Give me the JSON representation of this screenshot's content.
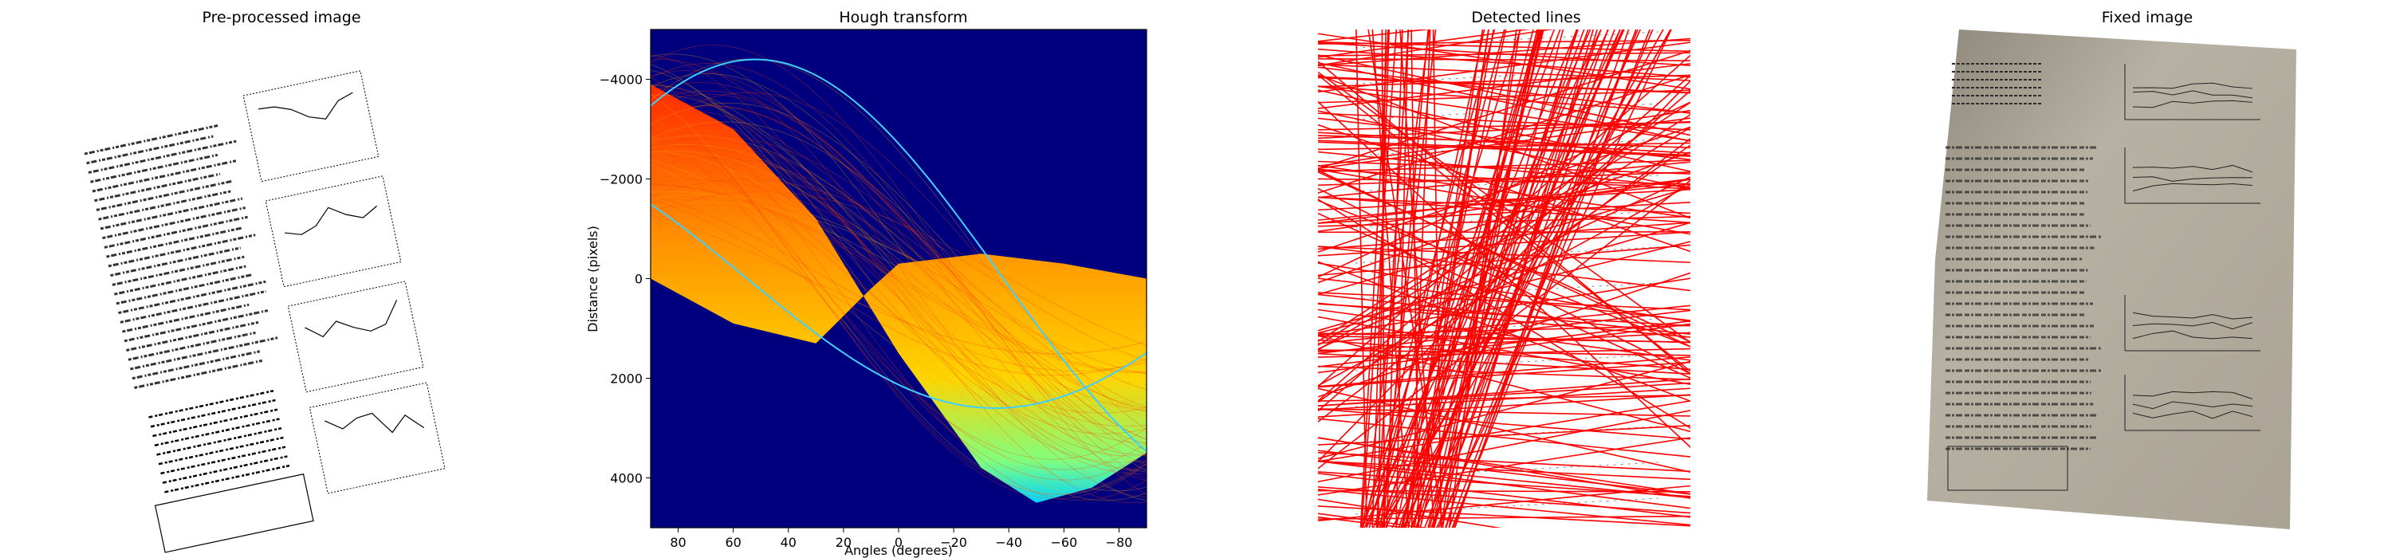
{
  "panels": [
    {
      "title": "Pre-processed image"
    },
    {
      "title": "Hough transform"
    },
    {
      "title": "Detected lines"
    },
    {
      "title": "Fixed image"
    }
  ],
  "chart_data": {
    "type": "heatmap",
    "title": "Hough transform",
    "xlabel": "Angles (degrees)",
    "ylabel": "Distance (pixels)",
    "xlim": [
      90,
      -90
    ],
    "ylim": [
      5000,
      -5000
    ],
    "xticks": [
      80,
      60,
      40,
      20,
      0,
      -20,
      -40,
      -60,
      -80
    ],
    "yticks": [
      -4000,
      -2000,
      0,
      2000,
      4000
    ],
    "xtick_labels": [
      "80",
      "60",
      "40",
      "20",
      "0",
      "−20",
      "−40",
      "−60",
      "−80"
    ],
    "ytick_labels": [
      "−4000",
      "−2000",
      "0",
      "2000",
      "4000"
    ],
    "colormap": "jet",
    "background_color": "#00007f",
    "envelope_upper": [
      {
        "angle": 90,
        "distance": -3900
      },
      {
        "angle": 60,
        "distance": -3000
      },
      {
        "angle": 30,
        "distance": -1200
      },
      {
        "angle": 0,
        "distance": 1500
      },
      {
        "angle": -30,
        "distance": 3800
      },
      {
        "angle": -50,
        "distance": 4500
      },
      {
        "angle": -70,
        "distance": 4200
      },
      {
        "angle": -90,
        "distance": 3500
      }
    ],
    "envelope_lower": [
      {
        "angle": 90,
        "distance": 0
      },
      {
        "angle": 60,
        "distance": 900
      },
      {
        "angle": 30,
        "distance": 1300
      },
      {
        "angle": 10,
        "distance": 200
      },
      {
        "angle": 0,
        "distance": -300
      },
      {
        "angle": -30,
        "distance": -500
      },
      {
        "angle": -60,
        "distance": -300
      },
      {
        "angle": -90,
        "distance": 0
      }
    ]
  },
  "colors": {
    "line_color": "#ff0000",
    "paper_tint": "#b9b3a6",
    "ink": "#2a2a2a"
  }
}
